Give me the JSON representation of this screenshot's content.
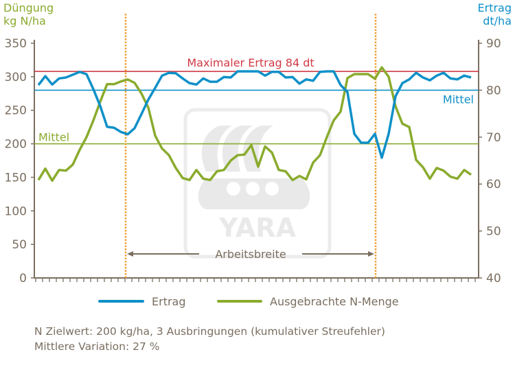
{
  "chart_data": {
    "type": "line",
    "left_axis": {
      "title_line1": "Düngung",
      "title_line2": "kg N/ha",
      "range": [
        0,
        350
      ],
      "ticks": [
        "0",
        "50",
        "100",
        "150",
        "200",
        "250",
        "300",
        "350"
      ],
      "color": "#8aab2e"
    },
    "right_axis": {
      "title_line1": "Ertrag",
      "title_line2": "dt/ha",
      "range": [
        40,
        90
      ],
      "ticks": [
        "40",
        "50",
        "60",
        "70",
        "80",
        "90"
      ],
      "color": "#0f90c8"
    },
    "x": {
      "range": [
        0,
        63
      ],
      "labels": "none"
    },
    "series": [
      {
        "name": "Ertrag",
        "axis": "right",
        "color": "#0f90c8",
        "values": [
          81.1,
          83.0,
          81.2,
          82.5,
          82.7,
          83.3,
          83.9,
          83.4,
          80.2,
          76.6,
          72.2,
          72.0,
          71.1,
          70.6,
          71.9,
          74.9,
          78.0,
          80.5,
          83.1,
          83.7,
          83.6,
          82.5,
          81.5,
          81.2,
          82.5,
          81.8,
          81.8,
          82.8,
          82.7,
          84,
          84,
          84,
          84,
          83.1,
          83.9,
          83.9,
          82.7,
          82.8,
          81.4,
          82.3,
          82.0,
          83.9,
          84,
          84,
          81.1,
          79.6,
          70.7,
          68.8,
          68.8,
          70.7,
          65.6,
          70.7,
          78.7,
          81.5,
          82.3,
          83.7,
          82.7,
          82.1,
          83.1,
          83.7,
          82.5,
          82.3,
          83.1,
          82.7
        ]
      },
      {
        "name": "Ausgebrachte N-Menge",
        "axis": "left",
        "color": "#8aab2e",
        "values": [
          146,
          163,
          145,
          161,
          160,
          169,
          191,
          210,
          235,
          263,
          289,
          289,
          293,
          296,
          291,
          275,
          254,
          212,
          193,
          183,
          164,
          149,
          146,
          161,
          148,
          146,
          159,
          161,
          175,
          183,
          184,
          198,
          166,
          196,
          187,
          161,
          159,
          146,
          152,
          147,
          172,
          183,
          210,
          235,
          248,
          298,
          304,
          304,
          304,
          297,
          314,
          300,
          256,
          230,
          225,
          176,
          165,
          148,
          164,
          160,
          151,
          148,
          161,
          154
        ]
      }
    ],
    "reference_lines": [
      {
        "label": "Maximaler Ertrag 84 dt",
        "axis": "right",
        "value": 84,
        "color": "#d03a45"
      },
      {
        "label": "Mittel",
        "axis": "right",
        "value": 80,
        "color": "#0f90c8"
      },
      {
        "label": "Mittel",
        "axis": "left",
        "value": 200,
        "color": "#8aab2e"
      }
    ],
    "vertical_markers": {
      "x": [
        12.7,
        49.1
      ],
      "color": "#f0a030",
      "style": "dotted"
    },
    "span_annotation": {
      "label": "Arbeitsbreite",
      "from": 12.7,
      "to": 49.1
    },
    "legend": {
      "placement": "bottom",
      "entries": [
        "Ertrag",
        "Ausgebrachte N-Menge"
      ]
    },
    "grid": false
  },
  "footer": {
    "line1": "N Zielwert: 200 kg/ha, 3 Ausbringungen (kumulativer Streufehler)",
    "line2": "Mittlere Variation: 27 %"
  },
  "watermark": {
    "text": "YARA"
  },
  "colors": {
    "text": "#7a6e60",
    "axis": "#7a6e60"
  }
}
